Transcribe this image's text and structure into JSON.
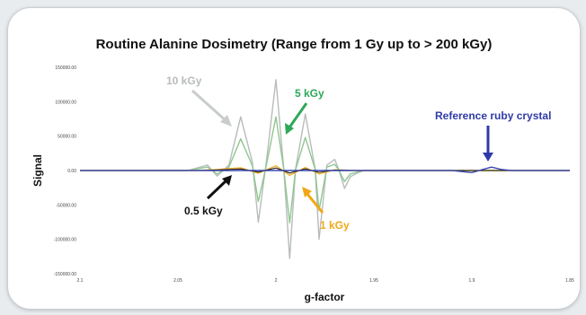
{
  "chart_data": {
    "type": "line",
    "title": "Routine Alanine Dosimetry (Range from 1 Gy up to > 200 kGy)",
    "xlabel": "g-factor",
    "ylabel": "Signal",
    "xlim": [
      2.1,
      1.85
    ],
    "ylim": [
      -150000,
      150000
    ],
    "x_reversed": true,
    "grid": false,
    "x_ticks": [
      {
        "value": 2.1,
        "label": "2.1"
      },
      {
        "value": 2.05,
        "label": "2.05"
      },
      {
        "value": 2.0,
        "label": "2"
      },
      {
        "value": 1.95,
        "label": "1.95"
      },
      {
        "value": 1.9,
        "label": "1.9"
      },
      {
        "value": 1.85,
        "label": "1.85"
      }
    ],
    "y_ticks": [
      {
        "value": 150000,
        "label": "150000.00"
      },
      {
        "value": 100000,
        "label": "100000.00"
      },
      {
        "value": 50000,
        "label": "50000.00"
      },
      {
        "value": 0,
        "label": "0.00"
      },
      {
        "value": -50000,
        "label": "-50000.00"
      },
      {
        "value": -100000,
        "label": "-100000.00"
      },
      {
        "value": -150000,
        "label": "-150000.00"
      }
    ],
    "series": [
      {
        "id": "s10",
        "color": "#b8bcbc",
        "x": [
          2.045,
          2.035,
          2.03,
          2.024,
          2.018,
          2.012,
          2.009,
          2.005,
          2.0,
          1.996,
          1.993,
          1.99,
          1.985,
          1.98,
          1.978,
          1.974,
          1.97,
          1.968,
          1.965,
          1.962,
          1.958,
          1.955
        ],
        "y": [
          0,
          8000,
          -8000,
          8000,
          78000,
          12000,
          -75000,
          10000,
          132000,
          3000,
          -128000,
          2000,
          82000,
          3000,
          -100000,
          8000,
          16000,
          2000,
          -26000,
          -9000,
          -3000,
          0
        ]
      },
      {
        "id": "s5",
        "color": "#8fc78f",
        "x": [
          2.045,
          2.035,
          2.03,
          2.024,
          2.018,
          2.012,
          2.009,
          2.005,
          2.0,
          1.996,
          1.993,
          1.99,
          1.985,
          1.98,
          1.978,
          1.974,
          1.97,
          1.968,
          1.965,
          1.962,
          1.958,
          1.955
        ],
        "y": [
          0,
          5000,
          -5000,
          5000,
          46000,
          7000,
          -45000,
          6000,
          78000,
          2000,
          -76000,
          1000,
          48000,
          2000,
          -58000,
          5000,
          9000,
          1000,
          -16000,
          -5000,
          -2000,
          0
        ]
      },
      {
        "id": "s1",
        "color": "#f2b233",
        "x": [
          2.04,
          2.03,
          2.018,
          2.009,
          2.0,
          1.993,
          1.985,
          1.978,
          1.97,
          1.96
        ],
        "y": [
          0,
          1500,
          4000,
          -4000,
          7000,
          -7000,
          4500,
          -5000,
          1000,
          0
        ]
      },
      {
        "id": "s05",
        "color": "#222222",
        "x": [
          2.04,
          2.03,
          2.018,
          2.009,
          2.0,
          1.993,
          1.985,
          1.978,
          1.97,
          1.96
        ],
        "y": [
          0,
          800,
          2200,
          -2200,
          3600,
          -3600,
          2400,
          -2600,
          600,
          0
        ]
      },
      {
        "id": "ruby",
        "color": "#3b46b0",
        "x": [
          1.91,
          1.9,
          1.895,
          1.89,
          1.885,
          1.88
        ],
        "y": [
          0,
          -3000,
          1000,
          5000,
          1500,
          0
        ]
      }
    ],
    "annotations": [
      {
        "id": "a10",
        "text": "10 kGy",
        "color": "#b8bcbc"
      },
      {
        "id": "a5",
        "text": "5 kGy",
        "color": "#2fa85a"
      },
      {
        "id": "aruby",
        "text": "Reference ruby crystal",
        "color": "#2f3aa8"
      },
      {
        "id": "a05",
        "text": "0.5 kGy",
        "color": "#111111"
      },
      {
        "id": "a1",
        "text": "1 kGy",
        "color": "#f0a818"
      }
    ]
  }
}
